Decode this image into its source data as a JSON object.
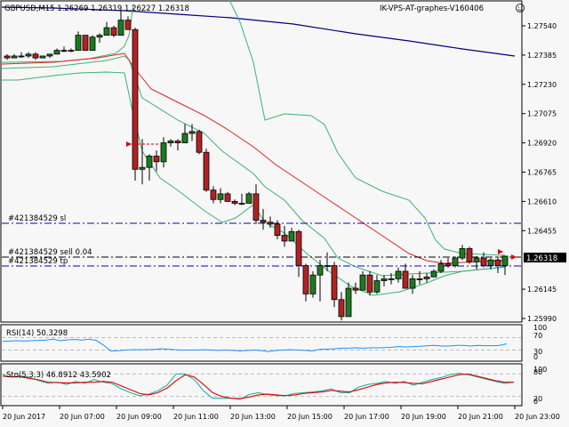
{
  "header": {
    "symbol_line": "GBPUSD,M15  1.26269 1.26319 1.26227 1.26318",
    "symbol": "GBPUSD",
    "timeframe": "M15",
    "open": "1.26269",
    "high": "1.26319",
    "low": "1.26227",
    "close": "1.26318",
    "expert_name": "IK-VPS-AT-graphes-V160406",
    "expert_icon": "smiley-face-icon"
  },
  "price_axis": {
    "ticks": [
      "1.27540",
      "1.27385",
      "1.27230",
      "1.27075",
      "1.26920",
      "1.26765",
      "1.26610",
      "1.26455",
      "1.26145",
      "1.25990"
    ],
    "current_price": "1.26318"
  },
  "order_lines": {
    "sl_label": "#421384529 sl",
    "entry_label": "#421384529 sell 0.04",
    "tp_label": "#421384529 tp"
  },
  "rsi": {
    "label": "RSI(14) 50.3298",
    "levels": [
      "100",
      "70",
      "30",
      "0"
    ]
  },
  "stochastic": {
    "label": "Sto(5,3,3) 46.8912 43.5902",
    "levels": [
      "100",
      "80",
      "20",
      "0"
    ]
  },
  "time_axis": {
    "ticks": [
      "20 Jun 2017",
      "20 Jun 07:00",
      "20 Jun 09:00",
      "20 Jun 11:00",
      "20 Jun 13:00",
      "20 Jun 15:00",
      "20 Jun 17:00",
      "20 Jun 19:00",
      "20 Jun 21:00",
      "20 Jun 23:00"
    ]
  },
  "colors": {
    "background": "#f7f7f7",
    "bull_candle": "#1e7a1e",
    "bear_candle": "#b22222",
    "bollinger": "#3cb371",
    "ma_fast": "#e02020",
    "ma_slow": "#000080",
    "sl_tp_line": "#0000cc",
    "entry_line": "#000000",
    "rsi_line": "#1e90ff",
    "sto_main": "#20b2aa",
    "sto_signal": "#e00000"
  },
  "chart_data": [
    {
      "type": "candlestick",
      "title": "GBPUSD,M15",
      "ylabel": "Price",
      "ylim": [
        1.2592,
        1.2768
      ],
      "x": [
        "20 Jun 2017",
        "20 Jun 07:00",
        "20 Jun 09:00",
        "20 Jun 11:00",
        "20 Jun 13:00",
        "20 Jun 15:00",
        "20 Jun 17:00",
        "20 Jun 19:00",
        "20 Jun 21:00",
        "20 Jun 23:00"
      ],
      "ohlc_approx": [
        [
          1.2738,
          1.2739,
          1.2736,
          1.2737
        ],
        [
          1.2737,
          1.2739,
          1.2737,
          1.2738
        ],
        [
          1.2738,
          1.274,
          1.2737,
          1.2738
        ],
        [
          1.2738,
          1.274,
          1.2737,
          1.2739
        ],
        [
          1.2739,
          1.274,
          1.2736,
          1.2737
        ],
        [
          1.2737,
          1.2738,
          1.2737,
          1.2738
        ],
        [
          1.2738,
          1.2739,
          1.2737,
          1.2739
        ],
        [
          1.2739,
          1.2742,
          1.2739,
          1.2741
        ],
        [
          1.2741,
          1.2743,
          1.274,
          1.2741
        ],
        [
          1.2741,
          1.2742,
          1.274,
          1.2741
        ],
        [
          1.2741,
          1.2751,
          1.2741,
          1.2749
        ],
        [
          1.2749,
          1.2749,
          1.2741,
          1.2741
        ],
        [
          1.2741,
          1.2749,
          1.2741,
          1.2748
        ],
        [
          1.2748,
          1.275,
          1.2745,
          1.2749
        ],
        [
          1.2749,
          1.2756,
          1.2749,
          1.2753
        ],
        [
          1.2753,
          1.2754,
          1.2748,
          1.2749
        ],
        [
          1.2749,
          1.2762,
          1.2749,
          1.2757
        ],
        [
          1.2757,
          1.2759,
          1.2752,
          1.2752
        ],
        [
          1.2752,
          1.2753,
          1.2672,
          1.2678
        ],
        [
          1.2678,
          1.2694,
          1.267,
          1.2679
        ],
        [
          1.2679,
          1.2686,
          1.2672,
          1.2685
        ],
        [
          1.2685,
          1.2688,
          1.2677,
          1.2682
        ],
        [
          1.2682,
          1.2695,
          1.2679,
          1.2692
        ],
        [
          1.2692,
          1.2694,
          1.269,
          1.2693
        ],
        [
          1.2693,
          1.2694,
          1.2688,
          1.2692
        ],
        [
          1.2692,
          1.2702,
          1.2692,
          1.2697
        ],
        [
          1.2697,
          1.2702,
          1.2693,
          1.2698
        ],
        [
          1.2698,
          1.2699,
          1.2686,
          1.2687
        ],
        [
          1.2687,
          1.2689,
          1.2666,
          1.2667
        ],
        [
          1.2667,
          1.2669,
          1.266,
          1.2662
        ],
        [
          1.2662,
          1.2668,
          1.266,
          1.2665
        ],
        [
          1.2665,
          1.2666,
          1.2661,
          1.2661
        ],
        [
          1.2661,
          1.2662,
          1.2659,
          1.266
        ],
        [
          1.266,
          1.2665,
          1.2659,
          1.266
        ],
        [
          1.266,
          1.2666,
          1.266,
          1.2665
        ],
        [
          1.2665,
          1.267,
          1.2649,
          1.2651
        ],
        [
          1.2651,
          1.2657,
          1.2646,
          1.265
        ],
        [
          1.265,
          1.2653,
          1.2647,
          1.2649
        ],
        [
          1.2649,
          1.2651,
          1.2641,
          1.2643
        ],
        [
          1.2643,
          1.2648,
          1.2637,
          1.264
        ],
        [
          1.264,
          1.2647,
          1.264,
          1.2645
        ],
        [
          1.2645,
          1.2646,
          1.2621,
          1.2627
        ],
        [
          1.2627,
          1.2628,
          1.2608,
          1.2612
        ],
        [
          1.2612,
          1.2624,
          1.261,
          1.2622
        ],
        [
          1.2622,
          1.263,
          1.2608,
          1.2627
        ],
        [
          1.2627,
          1.2634,
          1.2624,
          1.2627
        ],
        [
          1.2627,
          1.2629,
          1.2605,
          1.2609
        ],
        [
          1.2609,
          1.2613,
          1.2598,
          1.26
        ],
        [
          1.26,
          1.2618,
          1.26,
          1.2615
        ],
        [
          1.2615,
          1.2618,
          1.2612,
          1.2614
        ],
        [
          1.2614,
          1.2624,
          1.2614,
          1.2622
        ],
        [
          1.2622,
          1.2624,
          1.2611,
          1.2613
        ],
        [
          1.2613,
          1.2622,
          1.2612,
          1.2619
        ],
        [
          1.2619,
          1.2622,
          1.2616,
          1.262
        ],
        [
          1.262,
          1.2623,
          1.2617,
          1.262
        ],
        [
          1.262,
          1.2626,
          1.2618,
          1.2624
        ],
        [
          1.2624,
          1.2628,
          1.2615,
          1.2615
        ],
        [
          1.2615,
          1.2622,
          1.2612,
          1.262
        ],
        [
          1.262,
          1.2624,
          1.2617,
          1.262
        ],
        [
          1.262,
          1.2623,
          1.2618,
          1.2621
        ],
        [
          1.2621,
          1.2625,
          1.2621,
          1.2624
        ],
        [
          1.2624,
          1.263,
          1.2623,
          1.2628
        ],
        [
          1.2628,
          1.2631,
          1.2626,
          1.2627
        ],
        [
          1.2627,
          1.2632,
          1.2626,
          1.2631
        ],
        [
          1.2631,
          1.2638,
          1.263,
          1.2636
        ],
        [
          1.2636,
          1.2637,
          1.2628,
          1.2629
        ],
        [
          1.2629,
          1.2632,
          1.2625,
          1.2631
        ],
        [
          1.2631,
          1.2634,
          1.2626,
          1.2627
        ],
        [
          1.2627,
          1.2631,
          1.2625,
          1.263
        ],
        [
          1.263,
          1.2632,
          1.2623,
          1.2627
        ],
        [
          1.2627,
          1.2632,
          1.2622,
          1.2632
        ]
      ],
      "series": [
        {
          "name": "Bollinger Bands",
          "color": "#3cb371"
        },
        {
          "name": "Fast MA",
          "color": "#e02020"
        },
        {
          "name": "Slow MA",
          "color": "#000080"
        }
      ],
      "horizontal_lines": [
        {
          "label": "#421384529 sl",
          "value": 1.2648
        },
        {
          "label": "#421384529 sell 0.04",
          "value": 1.2632
        },
        {
          "label": "#421384529 tp",
          "value": 1.2629
        }
      ],
      "current_price": 1.26318
    },
    {
      "type": "line",
      "title": "RSI(14) 50.3298",
      "ylim": [
        0,
        100
      ],
      "levels": [
        70,
        30
      ],
      "values_approx": [
        58,
        59,
        60,
        59,
        60,
        61,
        62,
        65,
        60,
        63,
        64,
        62,
        65,
        61,
        46,
        27,
        28,
        30,
        31,
        31,
        31,
        32,
        34,
        33,
        31,
        30,
        30,
        30,
        31,
        30,
        29,
        30,
        29,
        27,
        29,
        30,
        28,
        25,
        29,
        30,
        31,
        30,
        29,
        27,
        32,
        33,
        34,
        36,
        36,
        37,
        36,
        37,
        37,
        38,
        39,
        41,
        40,
        41,
        42,
        44,
        45,
        43,
        43,
        45,
        45,
        43,
        45,
        44,
        44,
        45,
        50
      ]
    },
    {
      "type": "line",
      "title": "Sto(5,3,3) 46.8912 43.5902",
      "ylim": [
        0,
        100
      ],
      "levels": [
        80,
        20
      ],
      "series": [
        {
          "name": "%K",
          "color": "#20b2aa",
          "values_approx": [
            78,
            72,
            75,
            70,
            62,
            55,
            58,
            52,
            60,
            55,
            65,
            58,
            54,
            40,
            30,
            22,
            26,
            35,
            50,
            80,
            80,
            65,
            35,
            15,
            15,
            15,
            12,
            25,
            30,
            25,
            22,
            22,
            28,
            30,
            32,
            35,
            40,
            30,
            30,
            45,
            52,
            55,
            60,
            55,
            60,
            50,
            58,
            65,
            70,
            78,
            82,
            78,
            72,
            66,
            60,
            55,
            58
          ]
        },
        {
          "name": "%D",
          "color": "#e00000",
          "values_approx": [
            74,
            72,
            72,
            68,
            64,
            58,
            57,
            56,
            56,
            58,
            58,
            60,
            58,
            48,
            38,
            28,
            24,
            30,
            42,
            62,
            78,
            72,
            52,
            30,
            20,
            15,
            14,
            18,
            24,
            26,
            24,
            22,
            24,
            28,
            30,
            32,
            36,
            34,
            32,
            38,
            45,
            52,
            56,
            58,
            57,
            55,
            54,
            60,
            66,
            72,
            78,
            80,
            74,
            68,
            62,
            58,
            58
          ]
        }
      ]
    }
  ]
}
